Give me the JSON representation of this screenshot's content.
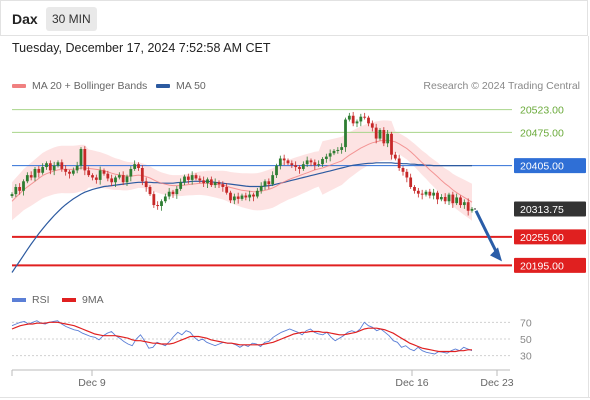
{
  "header": {
    "instrument": "Dax",
    "timeframe": "30 MIN",
    "datetime": "Tuesday, December 17, 2024 7:52:58 AM CET"
  },
  "legend": {
    "ma20_label": "MA 20 + Bollinger Bands",
    "ma50_label": "MA 50",
    "ma20_color": "#f08080",
    "ma50_color": "#2c5aa0",
    "credit": "Research © 2024 Trading Central"
  },
  "rsi_legend": {
    "rsi_label": "RSI",
    "ma_label": "9MA",
    "rsi_color": "#5b7fd6",
    "ma_color": "#e02020"
  },
  "colors": {
    "up_candle": "#2e7d32",
    "down_candle": "#c62828",
    "band_fill": "#fde0e0",
    "resistance": "#a8d48a",
    "pivot": "#2f6fd6",
    "support": "#e02020",
    "last_price": "#333333",
    "arrow": "#2a5da8"
  },
  "chart_data": [
    {
      "type": "candlestick",
      "title": "Dax",
      "ylim": [
        20160,
        20560
      ],
      "x_ticks": [
        "Dec 9",
        "Dec 16",
        "Dec 23"
      ],
      "levels": [
        {
          "value": 20523.0,
          "label": "20523.00",
          "kind": "resistance"
        },
        {
          "value": 20475.0,
          "label": "20475.00",
          "kind": "resistance"
        },
        {
          "value": 20405.0,
          "label": "20405.00",
          "kind": "pivot"
        },
        {
          "value": 20313.75,
          "label": "20313.75",
          "kind": "last"
        },
        {
          "value": 20255.0,
          "label": "20255.00",
          "kind": "support"
        },
        {
          "value": 20195.0,
          "label": "20195.00",
          "kind": "support"
        }
      ],
      "closes": [
        20345,
        20360,
        20352,
        20372,
        20385,
        20380,
        20398,
        20390,
        20402,
        20410,
        20395,
        20405,
        20412,
        20398,
        20392,
        20388,
        20395,
        20405,
        20440,
        20395,
        20385,
        20380,
        20375,
        20395,
        20388,
        20378,
        20370,
        20380,
        20385,
        20370,
        20382,
        20398,
        20408,
        20400,
        20372,
        20360,
        20345,
        20322,
        20320,
        20330,
        20340,
        20350,
        20345,
        20356,
        20370,
        20382,
        20375,
        20385,
        20378,
        20374,
        20368,
        20376,
        20364,
        20370,
        20366,
        20360,
        20348,
        20332,
        20340,
        20335,
        20342,
        20338,
        20344,
        20340,
        20352,
        20362,
        20372,
        20366,
        20385,
        20405,
        20420,
        20416,
        20410,
        20406,
        20402,
        20398,
        20408,
        20416,
        20412,
        20406,
        20408,
        20419,
        20424,
        20431,
        20436,
        20438,
        20444,
        20502,
        20510,
        20494,
        20498,
        20508,
        20506,
        20494,
        20485,
        20462,
        20480,
        20452,
        20472,
        20428,
        20420,
        20400,
        20392,
        20380,
        20360,
        20352,
        20346,
        20344,
        20350,
        20342,
        20348,
        20334,
        20339,
        20330,
        20344,
        20326,
        20338,
        20322,
        20328,
        20310,
        20314
      ],
      "ma20": [
        20330,
        20338,
        20346,
        20354,
        20360,
        20366,
        20372,
        20378,
        20384,
        20388,
        20391,
        20394,
        20396,
        20397,
        20397,
        20397,
        20397,
        20398,
        20400,
        20400,
        20399,
        20398,
        20397,
        20396,
        20394,
        20392,
        20389,
        20387,
        20386,
        20384,
        20383,
        20383,
        20384,
        20385,
        20384,
        20382,
        20379,
        20375,
        20371,
        20368,
        20366,
        20364,
        20363,
        20363,
        20363,
        20364,
        20365,
        20366,
        20367,
        20368,
        20368,
        20368,
        20367,
        20366,
        20365,
        20364,
        20362,
        20359,
        20357,
        20355,
        20353,
        20352,
        20351,
        20350,
        20350,
        20351,
        20353,
        20355,
        20358,
        20362,
        20367,
        20371,
        20375,
        20378,
        20381,
        20384,
        20387,
        20390,
        20393,
        20396,
        20398,
        20400,
        20403,
        20406,
        20409,
        20412,
        20415,
        20421,
        20427,
        20432,
        20437,
        20442,
        20446,
        20450,
        20453,
        20455,
        20457,
        20458,
        20458,
        20457,
        20455,
        20451,
        20446,
        20441,
        20434,
        20427,
        20419,
        20411,
        20404,
        20396,
        20389,
        20382,
        20374,
        20367,
        20361,
        20354,
        20348,
        20343,
        20338,
        20333,
        20328
      ],
      "ma50": [
        20180,
        20192,
        20204,
        20216,
        20228,
        20240,
        20251,
        20262,
        20272,
        20282,
        20291,
        20300,
        20308,
        20316,
        20323,
        20329,
        20335,
        20340,
        20345,
        20349,
        20352,
        20355,
        20357,
        20359,
        20361,
        20362,
        20363,
        20364,
        20365,
        20366,
        20367,
        20368,
        20369,
        20370,
        20370,
        20370,
        20370,
        20369,
        20369,
        20368,
        20368,
        20368,
        20368,
        20369,
        20370,
        20370,
        20371,
        20372,
        20372,
        20372,
        20372,
        20372,
        20371,
        20370,
        20369,
        20368,
        20367,
        20366,
        20365,
        20364,
        20363,
        20362,
        20361,
        20361,
        20361,
        20361,
        20362,
        20363,
        20364,
        20366,
        20368,
        20370,
        20372,
        20374,
        20376,
        20378,
        20380,
        20382,
        20384,
        20386,
        20388,
        20390,
        20392,
        20394,
        20396,
        20398,
        20400,
        20402,
        20404,
        20406,
        20407,
        20408,
        20409,
        20410,
        20410,
        20411,
        20411,
        20411,
        20411,
        20411,
        20410,
        20410,
        20409,
        20409,
        20408,
        20408,
        20407,
        20407,
        20406,
        20406,
        20405,
        20405,
        20405,
        20405,
        20405,
        20405,
        20405,
        20405,
        20405,
        20405,
        20405
      ]
    },
    {
      "type": "line",
      "title": "RSI",
      "ylim": [
        20,
        80
      ],
      "y_ticks": [
        70,
        50,
        30
      ],
      "series": [
        {
          "name": "RSI",
          "values": [
            66,
            68,
            70,
            71,
            68,
            70,
            72,
            69,
            68,
            70,
            71,
            72,
            68,
            65,
            63,
            61,
            60,
            57,
            55,
            53,
            52,
            49,
            54,
            57,
            59,
            54,
            51,
            47,
            44,
            42,
            50,
            55,
            48,
            39,
            40,
            46,
            44,
            42,
            47,
            53,
            58,
            55,
            60,
            58,
            52,
            48,
            50,
            46,
            44,
            42,
            44,
            46,
            45,
            45,
            43,
            40,
            43,
            41,
            45,
            44,
            41,
            46,
            47,
            52,
            55,
            58,
            60,
            62,
            60,
            58,
            55,
            60,
            62,
            58,
            56,
            55,
            58,
            52,
            48,
            51,
            54,
            58,
            60,
            58,
            62,
            70,
            66,
            64,
            60,
            62,
            58,
            54,
            48,
            46,
            40,
            42,
            38,
            36,
            40,
            36,
            34,
            33,
            32,
            35,
            34,
            33,
            36,
            38,
            36,
            40,
            38,
            36
          ]
        },
        {
          "name": "9MA",
          "values": [
            62,
            64,
            66,
            67,
            68,
            68,
            69,
            69,
            69,
            70,
            70,
            70,
            69,
            68,
            67,
            66,
            64,
            62,
            60,
            58,
            56,
            55,
            54,
            54,
            54,
            54,
            53,
            52,
            51,
            49,
            48,
            48,
            47,
            46,
            45,
            45,
            44,
            44,
            44,
            45,
            47,
            49,
            51,
            53,
            53,
            53,
            52,
            51,
            49,
            48,
            47,
            46,
            45,
            45,
            44,
            43,
            43,
            43,
            43,
            43,
            43,
            44,
            45,
            46,
            48,
            50,
            52,
            54,
            56,
            57,
            58,
            58,
            59,
            59,
            59,
            58,
            58,
            57,
            56,
            55,
            55,
            56,
            57,
            58,
            60,
            62,
            63,
            63,
            63,
            62,
            61,
            59,
            57,
            54,
            51,
            48,
            45,
            43,
            41,
            39,
            38,
            37,
            36,
            35,
            35,
            35,
            35,
            35,
            36,
            36,
            37,
            37
          ]
        }
      ]
    }
  ]
}
